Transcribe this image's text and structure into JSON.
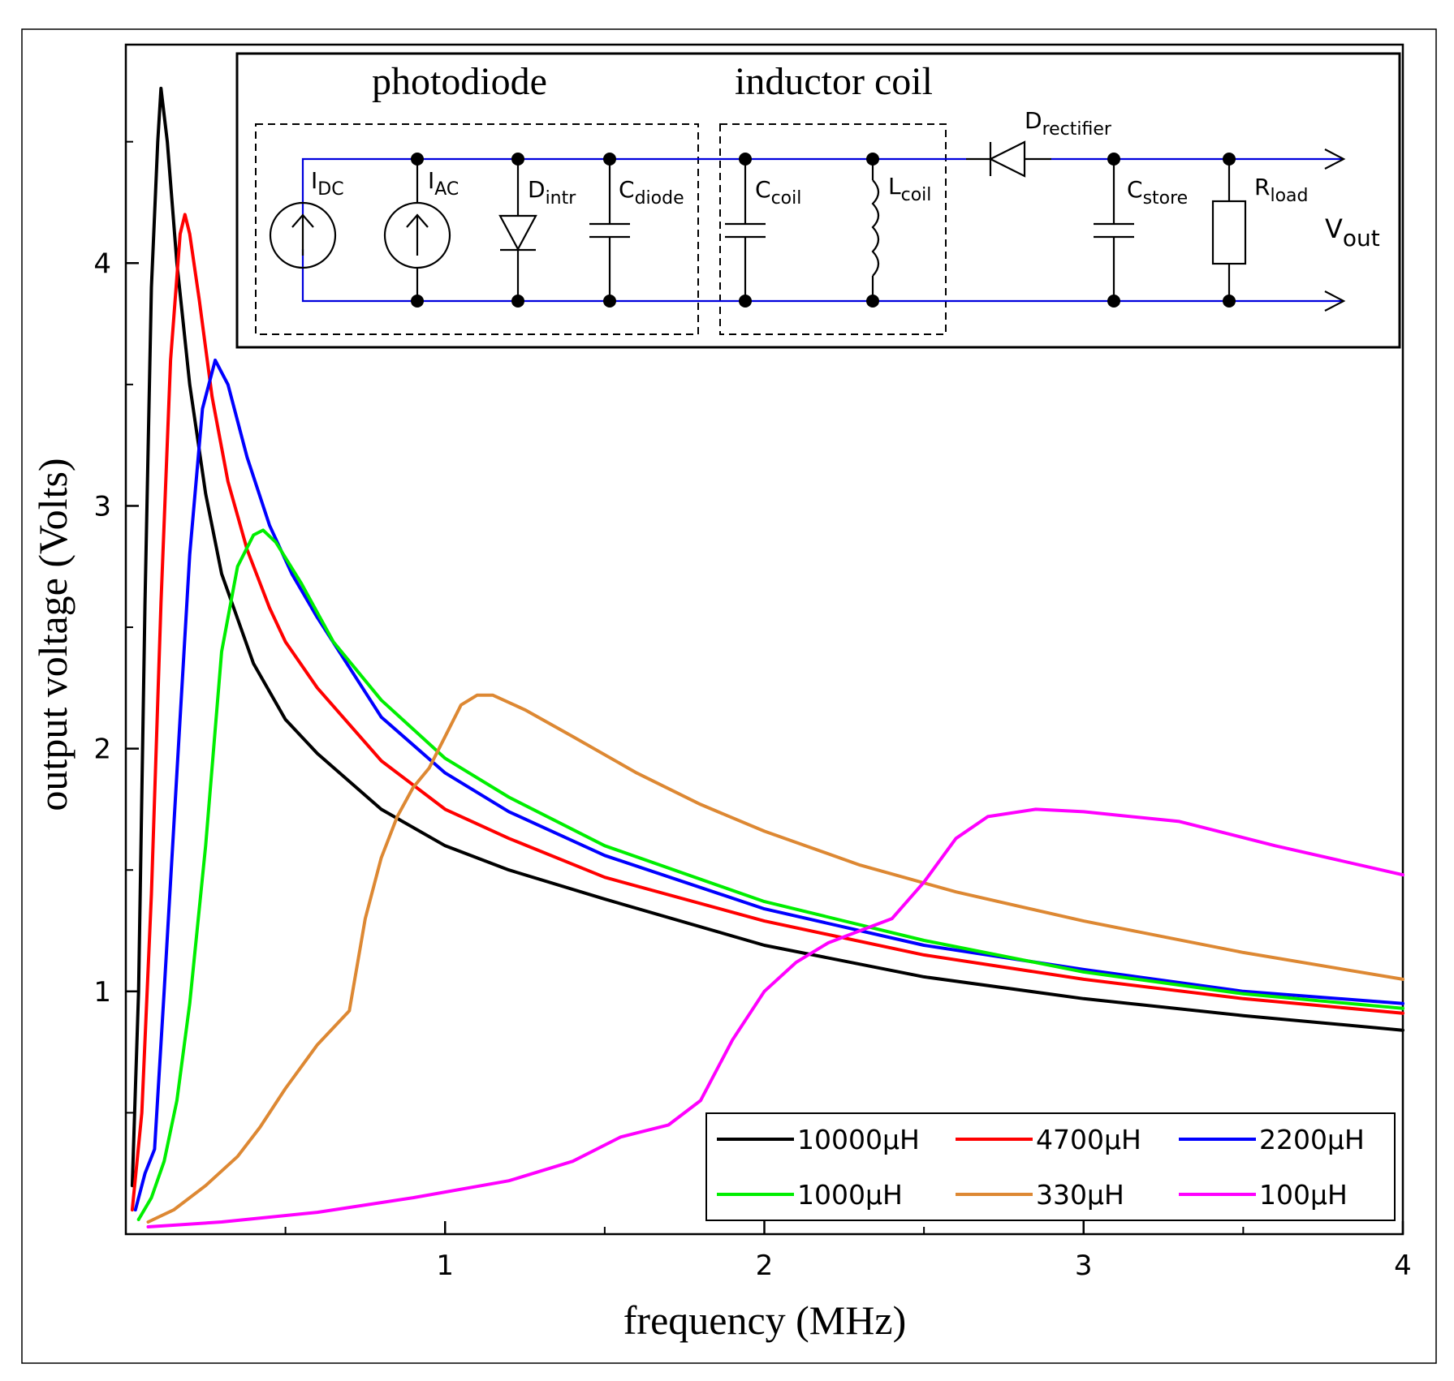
{
  "chart_data": {
    "type": "line",
    "title": "",
    "xlabel": "frequency (MHz)",
    "ylabel": "output voltage (Volts)",
    "xlim": [
      0,
      4
    ],
    "ylim": [
      0,
      4.9
    ],
    "x_ticks": [
      {
        "value": 1,
        "label": "1"
      },
      {
        "value": 2,
        "label": "2"
      },
      {
        "value": 3,
        "label": "3"
      },
      {
        "value": 4,
        "label": "4"
      }
    ],
    "x_minor_ticks": [
      0.5,
      1.5,
      2.5,
      3.5
    ],
    "y_ticks": [
      {
        "value": 1,
        "label": "1"
      },
      {
        "value": 2,
        "label": "2"
      },
      {
        "value": 3,
        "label": "3"
      },
      {
        "value": 4,
        "label": "4"
      }
    ],
    "y_minor_ticks": [
      0.5,
      1.5,
      2.5,
      3.5,
      4.5
    ],
    "legend_position": "bottom-right",
    "series": [
      {
        "name": "10000µH",
        "color": "#000000",
        "points": [
          [
            0.02,
            0.2
          ],
          [
            0.04,
            1.0
          ],
          [
            0.06,
            2.6
          ],
          [
            0.08,
            3.9
          ],
          [
            0.1,
            4.5
          ],
          [
            0.11,
            4.72
          ],
          [
            0.13,
            4.5
          ],
          [
            0.16,
            4.0
          ],
          [
            0.2,
            3.5
          ],
          [
            0.25,
            3.05
          ],
          [
            0.3,
            2.72
          ],
          [
            0.4,
            2.35
          ],
          [
            0.5,
            2.12
          ],
          [
            0.6,
            1.98
          ],
          [
            0.8,
            1.75
          ],
          [
            1.0,
            1.6
          ],
          [
            1.2,
            1.5
          ],
          [
            1.5,
            1.38
          ],
          [
            2.0,
            1.19
          ],
          [
            2.5,
            1.06
          ],
          [
            3.0,
            0.97
          ],
          [
            3.5,
            0.9
          ],
          [
            4.0,
            0.84
          ]
        ]
      },
      {
        "name": "4700µH",
        "color": "#ff0000",
        "points": [
          [
            0.02,
            0.1
          ],
          [
            0.05,
            0.5
          ],
          [
            0.08,
            1.4
          ],
          [
            0.11,
            2.6
          ],
          [
            0.14,
            3.6
          ],
          [
            0.17,
            4.12
          ],
          [
            0.185,
            4.2
          ],
          [
            0.2,
            4.12
          ],
          [
            0.23,
            3.85
          ],
          [
            0.27,
            3.45
          ],
          [
            0.32,
            3.1
          ],
          [
            0.38,
            2.82
          ],
          [
            0.45,
            2.58
          ],
          [
            0.5,
            2.44
          ],
          [
            0.6,
            2.25
          ],
          [
            0.8,
            1.95
          ],
          [
            1.0,
            1.75
          ],
          [
            1.2,
            1.63
          ],
          [
            1.5,
            1.47
          ],
          [
            2.0,
            1.29
          ],
          [
            2.5,
            1.15
          ],
          [
            3.0,
            1.05
          ],
          [
            3.5,
            0.97
          ],
          [
            4.0,
            0.91
          ]
        ]
      },
      {
        "name": "2200µH",
        "color": "#0000ff",
        "points": [
          [
            0.03,
            0.1
          ],
          [
            0.06,
            0.25
          ],
          [
            0.09,
            0.35
          ],
          [
            0.12,
            1.0
          ],
          [
            0.16,
            1.9
          ],
          [
            0.2,
            2.8
          ],
          [
            0.24,
            3.4
          ],
          [
            0.28,
            3.6
          ],
          [
            0.32,
            3.5
          ],
          [
            0.38,
            3.2
          ],
          [
            0.45,
            2.92
          ],
          [
            0.52,
            2.72
          ],
          [
            0.6,
            2.54
          ],
          [
            0.8,
            2.13
          ],
          [
            1.0,
            1.9
          ],
          [
            1.2,
            1.74
          ],
          [
            1.5,
            1.56
          ],
          [
            2.0,
            1.34
          ],
          [
            2.5,
            1.19
          ],
          [
            3.0,
            1.09
          ],
          [
            3.5,
            1.0
          ],
          [
            4.0,
            0.95
          ]
        ]
      },
      {
        "name": "1000µH",
        "color": "#00ee00",
        "points": [
          [
            0.04,
            0.06
          ],
          [
            0.08,
            0.15
          ],
          [
            0.12,
            0.3
          ],
          [
            0.16,
            0.55
          ],
          [
            0.2,
            0.95
          ],
          [
            0.25,
            1.6
          ],
          [
            0.3,
            2.4
          ],
          [
            0.35,
            2.75
          ],
          [
            0.4,
            2.88
          ],
          [
            0.43,
            2.9
          ],
          [
            0.47,
            2.85
          ],
          [
            0.55,
            2.68
          ],
          [
            0.65,
            2.44
          ],
          [
            0.8,
            2.2
          ],
          [
            1.0,
            1.96
          ],
          [
            1.2,
            1.8
          ],
          [
            1.5,
            1.6
          ],
          [
            2.0,
            1.37
          ],
          [
            2.5,
            1.21
          ],
          [
            3.0,
            1.08
          ],
          [
            3.5,
            0.99
          ],
          [
            4.0,
            0.93
          ]
        ]
      },
      {
        "name": "330µH",
        "color": "#dd8833",
        "points": [
          [
            0.07,
            0.05
          ],
          [
            0.15,
            0.1
          ],
          [
            0.25,
            0.2
          ],
          [
            0.35,
            0.32
          ],
          [
            0.42,
            0.44
          ],
          [
            0.5,
            0.6
          ],
          [
            0.6,
            0.78
          ],
          [
            0.7,
            0.92
          ],
          [
            0.75,
            1.3
          ],
          [
            0.8,
            1.55
          ],
          [
            0.85,
            1.72
          ],
          [
            0.9,
            1.84
          ],
          [
            0.95,
            1.92
          ],
          [
            1.0,
            2.05
          ],
          [
            1.05,
            2.18
          ],
          [
            1.1,
            2.22
          ],
          [
            1.15,
            2.22
          ],
          [
            1.25,
            2.16
          ],
          [
            1.4,
            2.05
          ],
          [
            1.6,
            1.9
          ],
          [
            1.8,
            1.77
          ],
          [
            2.0,
            1.66
          ],
          [
            2.3,
            1.52
          ],
          [
            2.6,
            1.41
          ],
          [
            3.0,
            1.29
          ],
          [
            3.5,
            1.16
          ],
          [
            4.0,
            1.05
          ]
        ]
      },
      {
        "name": "100µH",
        "color": "#ff00ff",
        "points": [
          [
            0.07,
            0.03
          ],
          [
            0.3,
            0.05
          ],
          [
            0.6,
            0.09
          ],
          [
            0.9,
            0.15
          ],
          [
            1.2,
            0.22
          ],
          [
            1.4,
            0.3
          ],
          [
            1.55,
            0.4
          ],
          [
            1.7,
            0.45
          ],
          [
            1.8,
            0.55
          ],
          [
            1.9,
            0.8
          ],
          [
            2.0,
            1.0
          ],
          [
            2.1,
            1.12
          ],
          [
            2.2,
            1.2
          ],
          [
            2.3,
            1.25
          ],
          [
            2.4,
            1.3
          ],
          [
            2.5,
            1.45
          ],
          [
            2.6,
            1.63
          ],
          [
            2.7,
            1.72
          ],
          [
            2.85,
            1.75
          ],
          [
            3.0,
            1.74
          ],
          [
            3.3,
            1.7
          ],
          [
            3.6,
            1.6
          ],
          [
            4.0,
            1.48
          ]
        ]
      }
    ]
  },
  "inset": {
    "title_left": "photodiode",
    "title_right": "inductor coil",
    "labels": {
      "idc": {
        "main": "I",
        "sub": "DC"
      },
      "iac": {
        "main": "I",
        "sub": "AC"
      },
      "dintr": {
        "main": "D",
        "sub": "intr"
      },
      "cdiode": {
        "main": "C",
        "sub": "diode"
      },
      "ccoil": {
        "main": "C",
        "sub": "coil"
      },
      "lcoil": {
        "main": "L",
        "sub": "coil"
      },
      "drect": {
        "main": "D",
        "sub": "rectifier"
      },
      "cstore": {
        "main": "C",
        "sub": "store"
      },
      "rload": {
        "main": "R",
        "sub": "load"
      },
      "vout": {
        "main": "V",
        "sub": "out"
      }
    }
  }
}
